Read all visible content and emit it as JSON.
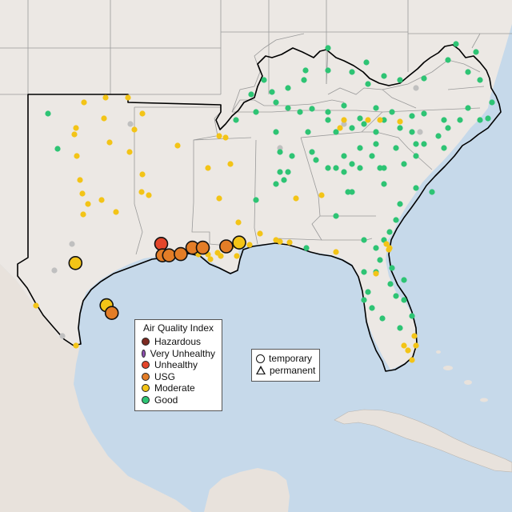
{
  "colors": {
    "water": "#c6d9ea",
    "land": "#ece8e4",
    "hazardous": "#7d2b22",
    "very_unhealthy": "#8e4fb1",
    "unhealthy": "#e3462b",
    "usg": "#e37d27",
    "moderate": "#f3c417",
    "good": "#2ec474",
    "inactive": "#c0c0c0"
  },
  "legend": {
    "title": "Air Quality Index",
    "items": [
      {
        "label": "Hazardous",
        "color": "#7d2b22"
      },
      {
        "label": "Very Unhealthy",
        "color": "#8e4fb1"
      },
      {
        "label": "Unhealthy",
        "color": "#e3462b"
      },
      {
        "label": "USG",
        "color": "#e37d27"
      },
      {
        "label": "Moderate",
        "color": "#f3c417"
      },
      {
        "label": "Good",
        "color": "#2ec474"
      }
    ]
  },
  "type_legend": {
    "temporary": "temporary",
    "permanent": "permanent"
  },
  "monitors_large": [
    {
      "lon": -95.3,
      "lat": 30.2,
      "aqi": "unhealthy"
    },
    {
      "lon": -95.25,
      "lat": 29.75,
      "aqi": "usg"
    },
    {
      "lon": -95.0,
      "lat": 29.75,
      "aqi": "usg"
    },
    {
      "lon": -94.55,
      "lat": 29.8,
      "aqi": "usg"
    },
    {
      "lon": -94.1,
      "lat": 30.05,
      "aqi": "usg"
    },
    {
      "lon": -93.7,
      "lat": 30.05,
      "aqi": "usg"
    },
    {
      "lon": -92.8,
      "lat": 30.1,
      "aqi": "usg"
    },
    {
      "lon": -92.3,
      "lat": 30.25,
      "aqi": "moderate"
    },
    {
      "lon": -98.6,
      "lat": 29.45,
      "aqi": "moderate"
    },
    {
      "lon": -97.4,
      "lat": 27.8,
      "aqi": "moderate"
    },
    {
      "lon": -97.2,
      "lat": 27.5,
      "aqi": "usg"
    }
  ]
}
